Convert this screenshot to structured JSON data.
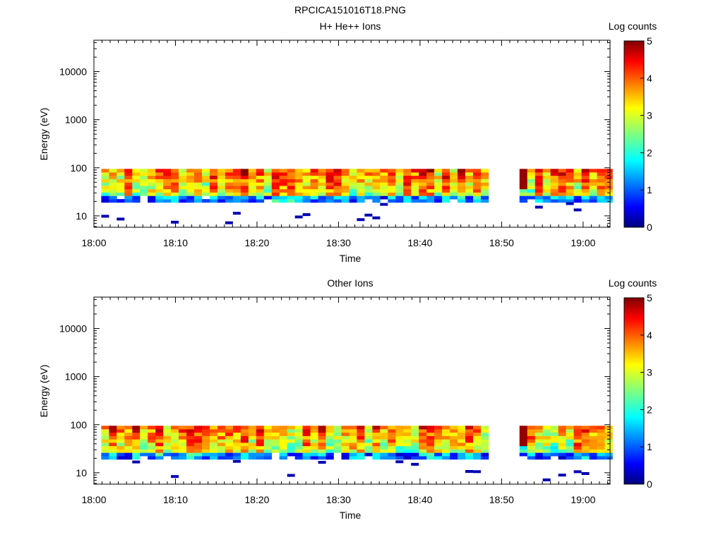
{
  "figure_title": "RPCICA151016T18.PNG",
  "chart_data": [
    {
      "type": "heatmap",
      "title": "H+ He++ Ions",
      "xlabel": "Time",
      "ylabel": "Energy (eV)",
      "x_tick_labels": [
        "18:00",
        "18:10",
        "18:20",
        "18:30",
        "18:40",
        "18:50",
        "19:00"
      ],
      "x_ticks_minutes": [
        0,
        10,
        20,
        30,
        40,
        50,
        60
      ],
      "xlim_minutes": [
        0,
        63.3
      ],
      "y_scale": "log",
      "ylim": [
        5.8,
        45000
      ],
      "y_tick_labels": [
        "10",
        "100",
        "1000",
        "10000"
      ],
      "y_tick_values": [
        10,
        100,
        1000,
        10000
      ],
      "colorbar": {
        "label": "Log counts",
        "range": [
          0,
          5
        ],
        "tick_labels": [
          "0",
          "1",
          "2",
          "3",
          "4",
          "5"
        ],
        "colormap": "jet"
      },
      "data_gap_minutes": [
        47.8,
        51.3
      ],
      "energy_band_ev": [
        19,
        95
      ],
      "seed": 11
    },
    {
      "type": "heatmap",
      "title": "Other Ions",
      "xlabel": "Time",
      "ylabel": "Energy (eV)",
      "x_tick_labels": [
        "18:00",
        "18:10",
        "18:20",
        "18:30",
        "18:40",
        "18:50",
        "19:00"
      ],
      "x_ticks_minutes": [
        0,
        10,
        20,
        30,
        40,
        50,
        60
      ],
      "xlim_minutes": [
        0,
        63.3
      ],
      "y_scale": "log",
      "ylim": [
        5.8,
        45000
      ],
      "y_tick_labels": [
        "10",
        "100",
        "1000",
        "10000"
      ],
      "y_tick_values": [
        10,
        100,
        1000,
        10000
      ],
      "colorbar": {
        "label": "Log counts",
        "range": [
          0,
          5
        ],
        "tick_labels": [
          "0",
          "1",
          "2",
          "3",
          "4",
          "5"
        ],
        "colormap": "jet"
      },
      "data_gap_minutes": [
        47.8,
        51.3
      ],
      "energy_band_ev": [
        19,
        95
      ],
      "seed": 29
    }
  ]
}
